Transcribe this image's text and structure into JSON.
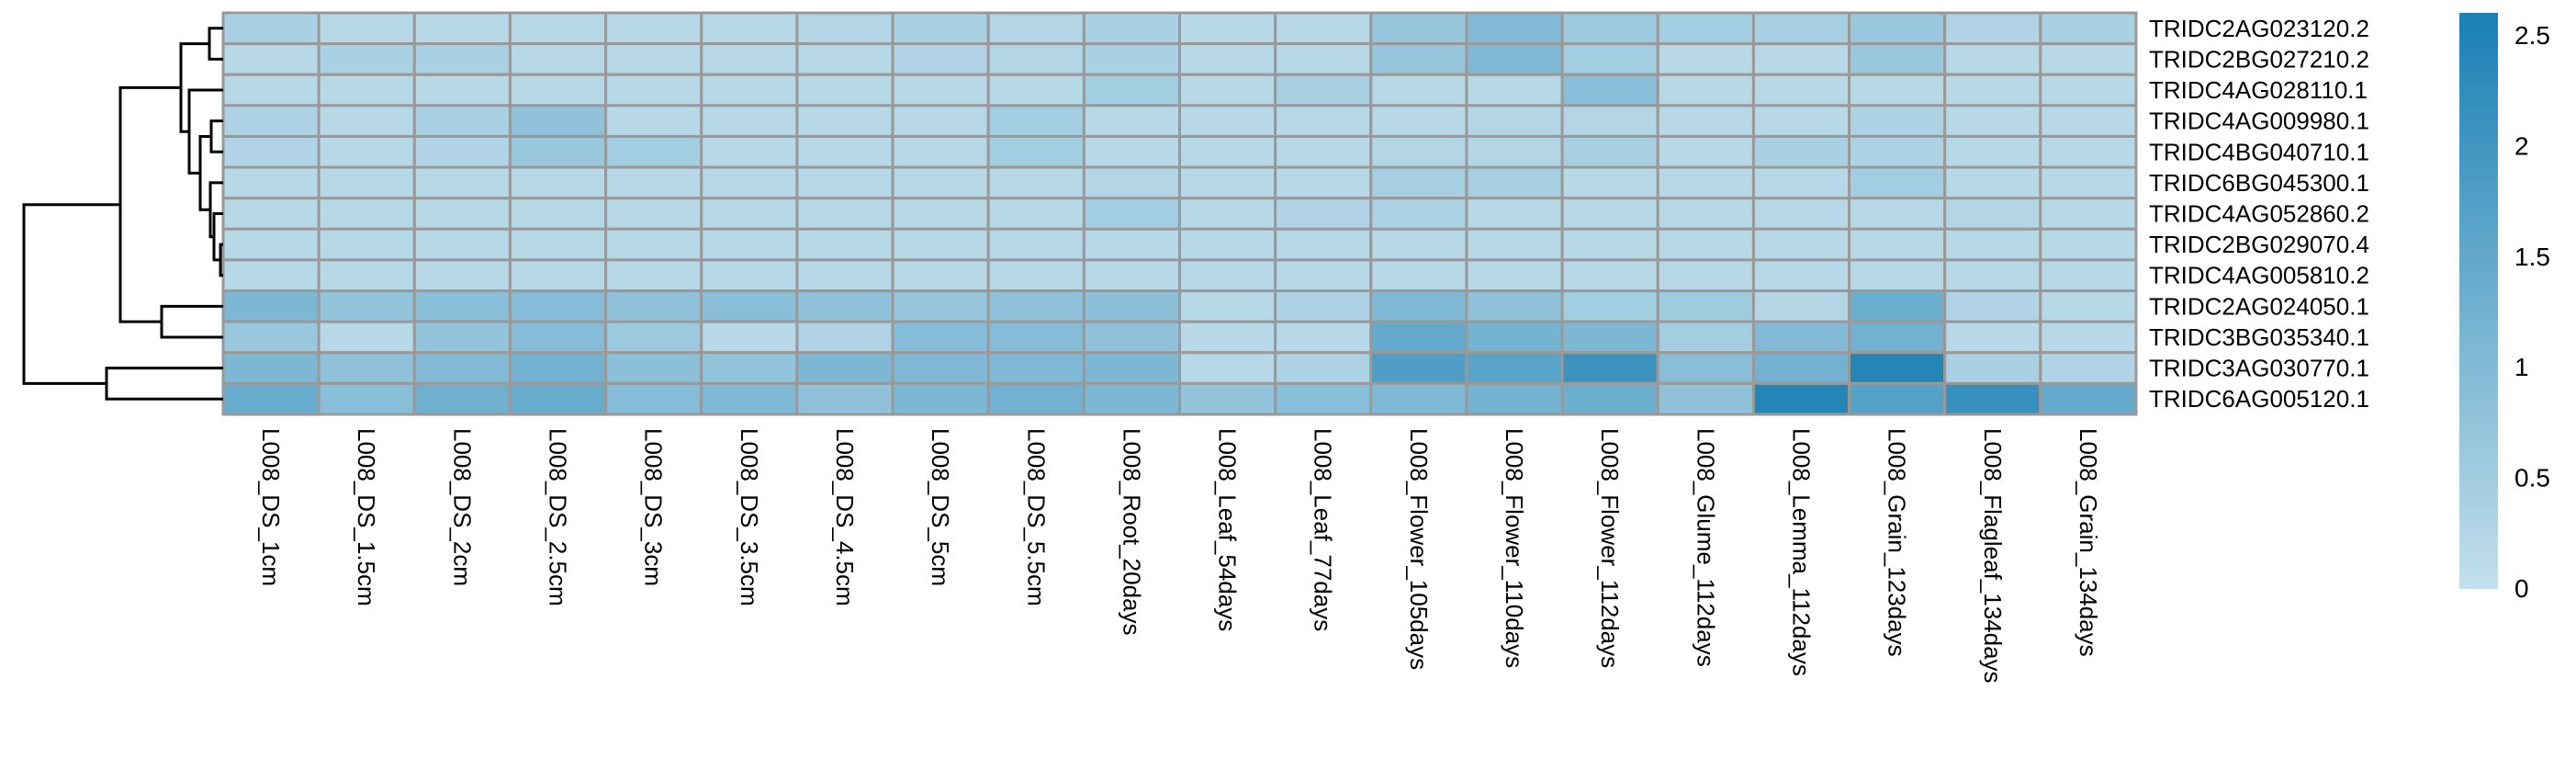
{
  "chart_data": {
    "type": "heatmap",
    "title": "",
    "columns": [
      "L008_DS_1cm",
      "L008_DS_1.5cm",
      "L008_DS_2cm",
      "L008_DS_2.5cm",
      "L008_DS_3cm",
      "L008_DS_3.5cm",
      "L008_DS_4.5cm",
      "L008_DS_5cm",
      "L008_DS_5.5cm",
      "L008_Root_20days",
      "L008_Leaf_54days",
      "L008_Leaf_77days",
      "L008_Flower_105days",
      "L008_Flower_110days",
      "L008_Flower_112days",
      "L008_Glume_112days",
      "L008_Lemma_112days",
      "L008_Grain_123days",
      "L008_Flagleaf_134days",
      "L008_Grain_134days"
    ],
    "rows": [
      "TRIDC2AG023120.2",
      "TRIDC2BG027210.2",
      "TRIDC4AG028110.1",
      "TRIDC4AG009980.1",
      "TRIDC4BG040710.1",
      "TRIDC6BG045300.1",
      "TRIDC4AG052860.2",
      "TRIDC2BG029070.4",
      "TRIDC4AG005810.2",
      "TRIDC2AG024050.1",
      "TRIDC3BG035340.1",
      "TRIDC3AG030770.1",
      "TRIDC6AG005120.1"
    ],
    "values": [
      [
        0.4,
        0.2,
        0.2,
        0.2,
        0.2,
        0.2,
        0.25,
        0.4,
        0.25,
        0.4,
        0.2,
        0.2,
        0.7,
        1.0,
        0.6,
        0.5,
        0.45,
        0.65,
        0.3,
        0.4
      ],
      [
        0.2,
        0.4,
        0.4,
        0.2,
        0.2,
        0.2,
        0.2,
        0.3,
        0.25,
        0.4,
        0.2,
        0.2,
        0.7,
        1.05,
        0.5,
        0.2,
        0.2,
        0.65,
        0.2,
        0.2
      ],
      [
        0.2,
        0.2,
        0.2,
        0.2,
        0.2,
        0.2,
        0.2,
        0.2,
        0.2,
        0.5,
        0.2,
        0.45,
        0.2,
        0.2,
        0.9,
        0.2,
        0.2,
        0.2,
        0.2,
        0.2
      ],
      [
        0.35,
        0.2,
        0.4,
        0.8,
        0.2,
        0.2,
        0.2,
        0.2,
        0.5,
        0.2,
        0.2,
        0.2,
        0.2,
        0.25,
        0.25,
        0.2,
        0.2,
        0.35,
        0.2,
        0.2
      ],
      [
        0.3,
        0.2,
        0.3,
        0.65,
        0.5,
        0.2,
        0.2,
        0.2,
        0.5,
        0.2,
        0.2,
        0.2,
        0.25,
        0.25,
        0.45,
        0.2,
        0.4,
        0.35,
        0.2,
        0.2
      ],
      [
        0.2,
        0.2,
        0.2,
        0.2,
        0.2,
        0.2,
        0.2,
        0.2,
        0.2,
        0.25,
        0.2,
        0.2,
        0.45,
        0.45,
        0.2,
        0.2,
        0.2,
        0.5,
        0.2,
        0.2
      ],
      [
        0.2,
        0.2,
        0.2,
        0.2,
        0.2,
        0.2,
        0.2,
        0.2,
        0.2,
        0.5,
        0.2,
        0.3,
        0.35,
        0.2,
        0.2,
        0.2,
        0.2,
        0.2,
        0.25,
        0.2
      ],
      [
        0.2,
        0.2,
        0.2,
        0.2,
        0.2,
        0.2,
        0.2,
        0.2,
        0.2,
        0.2,
        0.2,
        0.2,
        0.2,
        0.2,
        0.2,
        0.2,
        0.2,
        0.2,
        0.2,
        0.2
      ],
      [
        0.2,
        0.2,
        0.2,
        0.2,
        0.2,
        0.2,
        0.2,
        0.2,
        0.2,
        0.2,
        0.2,
        0.2,
        0.2,
        0.2,
        0.2,
        0.2,
        0.2,
        0.2,
        0.2,
        0.2
      ],
      [
        1.1,
        0.75,
        0.9,
        0.95,
        0.8,
        0.9,
        0.8,
        0.7,
        0.8,
        0.85,
        0.2,
        0.35,
        1.05,
        0.8,
        0.5,
        0.55,
        0.25,
        1.35,
        0.3,
        0.2
      ],
      [
        0.65,
        0.2,
        0.75,
        0.95,
        0.6,
        0.2,
        0.3,
        0.95,
        0.95,
        0.8,
        0.2,
        0.2,
        1.45,
        1.2,
        1.1,
        0.5,
        1.0,
        1.25,
        0.2,
        0.2
      ],
      [
        1.1,
        0.8,
        1.0,
        1.25,
        0.85,
        0.75,
        1.1,
        1.05,
        1.05,
        1.1,
        0.2,
        0.35,
        1.8,
        1.65,
        2.1,
        0.9,
        1.25,
        2.45,
        0.4,
        0.3
      ],
      [
        1.4,
        0.9,
        1.3,
        1.4,
        0.95,
        1.05,
        0.8,
        1.1,
        1.25,
        1.1,
        0.75,
        0.9,
        1.05,
        1.2,
        1.35,
        0.8,
        2.45,
        1.7,
        2.15,
        1.45
      ]
    ],
    "color_scale": {
      "min": 0,
      "max": 2.6,
      "low": "#c3dfeb",
      "high": "#1a80b4"
    },
    "legend": {
      "placement": "right",
      "ticks": [
        0,
        0.5,
        1,
        1.5,
        2,
        2.5
      ],
      "tick_labels": [
        "0",
        "0.5",
        "1",
        "1.5",
        "2",
        "2.5"
      ]
    },
    "row_dendrogram": true,
    "cell_border": "#999999"
  }
}
